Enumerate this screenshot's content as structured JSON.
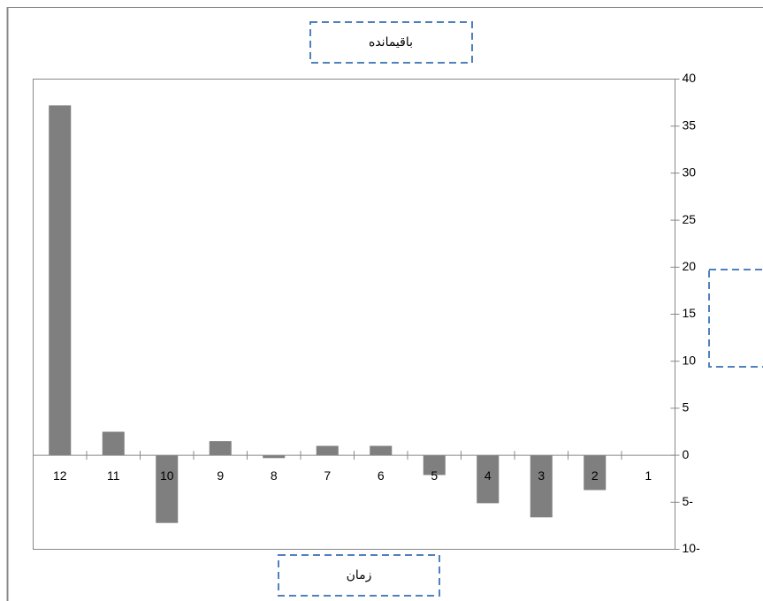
{
  "chart_data": {
    "type": "bar",
    "title": "باقیمانده",
    "x_label": "زمان",
    "categories": [
      "12",
      "11",
      "10",
      "9",
      "8",
      "7",
      "6",
      "5",
      "4",
      "3",
      "2",
      "1"
    ],
    "values": [
      37.2,
      2.5,
      -7.2,
      1.5,
      -0.3,
      1.0,
      1.0,
      -2.1,
      -5.1,
      -6.6,
      -3.7,
      0
    ],
    "color": "#7f7f7f",
    "ylim": [
      -10,
      40
    ],
    "yticks": [
      {
        "value": -10,
        "label": "10-"
      },
      {
        "value": -5,
        "label": "5-"
      },
      0,
      5,
      10,
      15,
      20,
      25,
      30,
      35,
      40
    ],
    "grid": false
  }
}
